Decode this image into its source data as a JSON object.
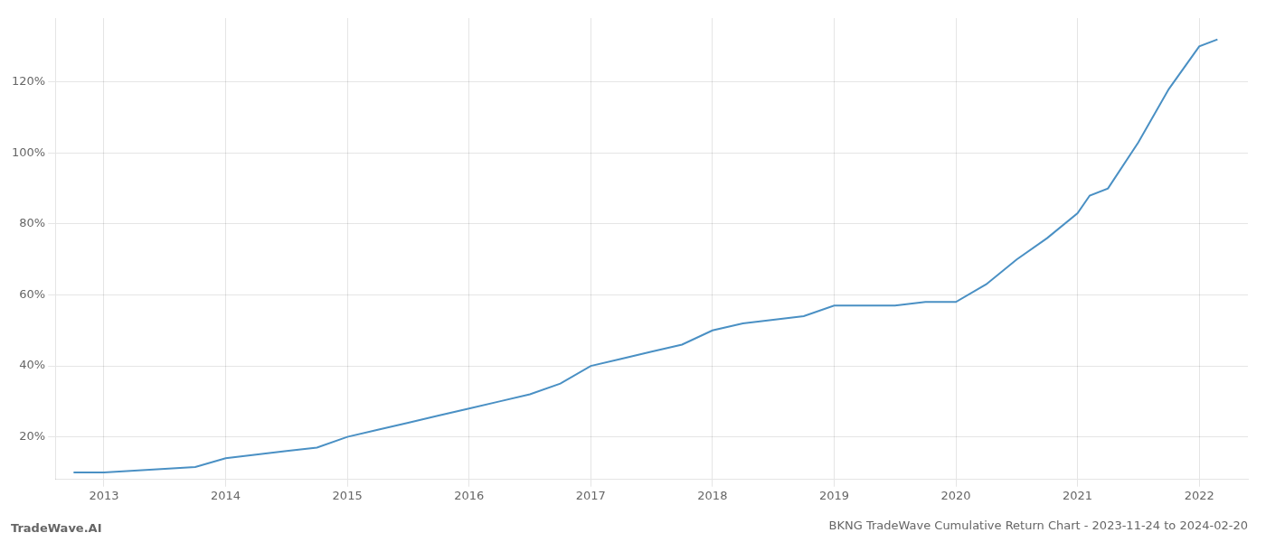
{
  "chart_data": {
    "type": "line",
    "title": "BKNG TradeWave Cumulative Return Chart - 2023-11-24 to 2024-02-20",
    "annotations": [
      "TradeWave.AI"
    ],
    "x": [
      2012.75,
      2013.0,
      2013.25,
      2013.5,
      2013.75,
      2014.0,
      2014.25,
      2014.5,
      2014.75,
      2015.0,
      2015.25,
      2015.5,
      2015.75,
      2016.0,
      2016.25,
      2016.5,
      2016.75,
      2017.0,
      2017.25,
      2017.5,
      2017.75,
      2018.0,
      2018.25,
      2018.5,
      2018.75,
      2019.0,
      2019.25,
      2019.5,
      2019.75,
      2020.0,
      2020.25,
      2020.5,
      2020.75,
      2021.0,
      2021.1,
      2021.25,
      2021.5,
      2021.75,
      2022.0,
      2022.15
    ],
    "values": [
      10,
      10,
      10.5,
      11,
      11.5,
      14,
      15,
      16,
      17,
      20,
      22,
      24,
      26,
      28,
      30,
      32,
      35,
      40,
      42,
      44,
      46,
      50,
      52,
      53,
      54,
      57,
      57,
      57,
      58,
      58,
      63,
      70,
      76,
      83,
      88,
      90,
      103,
      118,
      130,
      132
    ],
    "color": "#4a90c4",
    "xlim": [
      2012.6,
      2022.4
    ],
    "xticks": [
      2013,
      2014,
      2015,
      2016,
      2017,
      2018,
      2019,
      2020,
      2021,
      2022
    ],
    "ylim": [
      8,
      138
    ],
    "yticks": [
      {
        "value": 20,
        "label": "20%"
      },
      {
        "value": 40,
        "label": "40%"
      },
      {
        "value": 60,
        "label": "60%"
      },
      {
        "value": 80,
        "label": "80%"
      },
      {
        "value": 100,
        "label": "100%"
      },
      {
        "value": 120,
        "label": "120%"
      }
    ],
    "grid": true
  }
}
